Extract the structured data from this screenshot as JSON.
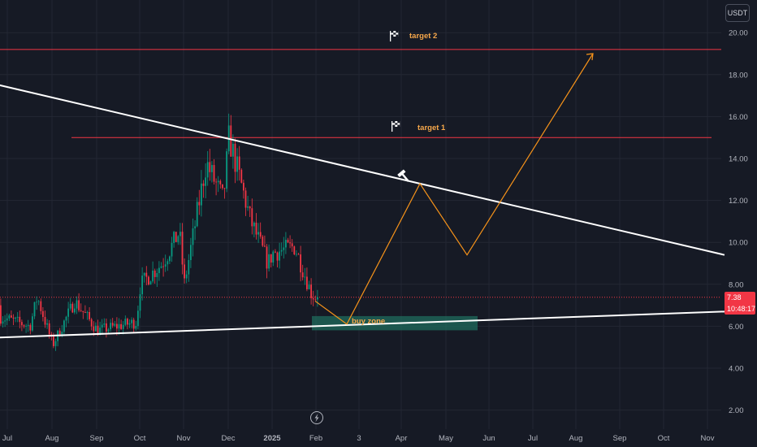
{
  "header": {
    "currency": "USDT"
  },
  "price_tag": {
    "price": "7.38",
    "countdown": "10:48:17"
  },
  "annotations": {
    "target2": "target 2",
    "target1": "target 1",
    "buy_zone": "buy zone"
  },
  "colors": {
    "background": "#161a25",
    "grid": "#232733",
    "up": "#089981",
    "down": "#f23645",
    "target_line": "#f23645",
    "projection": "#f7931a",
    "trendline": "#ffffff",
    "buy_zone": "#1f6b5c"
  },
  "icons": [
    "flag-checkered-icon",
    "hammer-icon",
    "lightning-icon"
  ],
  "chart_data": {
    "type": "candlestick",
    "y_ticks": [
      "20.00",
      "18.00",
      "16.00",
      "14.00",
      "12.00",
      "10.00",
      "8.00",
      "6.00",
      "4.00",
      "2.00"
    ],
    "y_range": [
      1.5,
      21.3
    ],
    "x_ticks": [
      "Jul",
      "Aug",
      "Sep",
      "Oct",
      "Nov",
      "Dec",
      "2025",
      "Feb",
      "3",
      "Apr",
      "May",
      "Jun",
      "Jul",
      "Aug",
      "Sep",
      "Oct",
      "Nov"
    ],
    "last_price": 7.38,
    "target_levels": [
      {
        "label": "target 2",
        "price": 19.2
      },
      {
        "label": "target 1",
        "price": 15.0
      }
    ],
    "buy_zone": {
      "label": "buy zone",
      "low": 6.0,
      "high": 6.6
    },
    "trendlines": [
      {
        "name": "descending resistance",
        "start": [
          "Jun",
          17.9
        ],
        "end": [
          "Nov",
          9.4
        ]
      },
      {
        "name": "ascending support",
        "start": [
          "Jun",
          5.4
        ],
        "end": [
          "Nov",
          6.7
        ]
      }
    ],
    "projection_path": [
      [
        "Feb",
        7.2
      ],
      [
        "Feb-mid",
        6.1
      ],
      [
        "Mar-mid",
        12.8
      ],
      [
        "May-mid",
        9.4
      ],
      [
        "Aug",
        19.0
      ]
    ],
    "price_path": [
      [
        "Jun",
        7.0
      ],
      [
        "Jul-mid",
        6.0
      ],
      [
        "Jul-end",
        7.4
      ],
      [
        "Aug",
        5.1
      ],
      [
        "Aug-mid",
        7.2
      ],
      [
        "Sep",
        5.8
      ],
      [
        "Sep-end",
        6.2
      ],
      [
        "Oct",
        8.0
      ],
      [
        "Oct-mid",
        9.0
      ],
      [
        "Oct-end",
        10.5
      ],
      [
        "Nov",
        8.0
      ],
      [
        "Nov-mid",
        13.8
      ],
      [
        "Nov-end",
        12.0
      ],
      [
        "Dec",
        15.0
      ],
      [
        "Dec-mid",
        11.0
      ],
      [
        "Dec-end",
        9.0
      ],
      [
        "2025",
        9.5
      ],
      [
        "Jan-mid",
        9.8
      ],
      [
        "Jan-end",
        7.5
      ],
      [
        "Feb",
        7.38
      ]
    ]
  }
}
